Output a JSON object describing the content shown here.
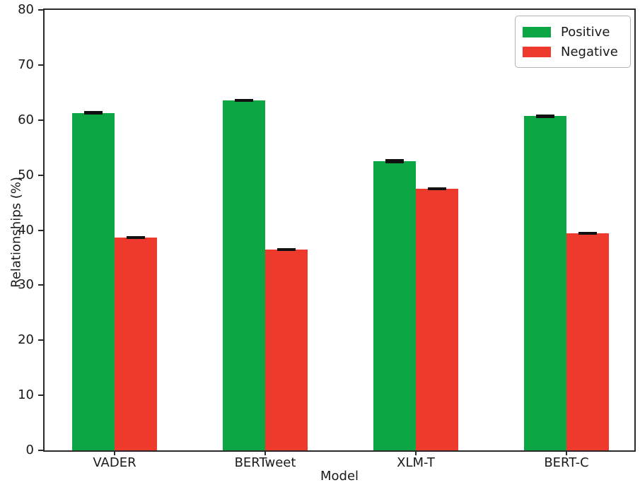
{
  "chart_data": {
    "type": "bar",
    "title": "",
    "xlabel": "Model",
    "ylabel": "Relationships (%)",
    "categories": [
      "VADER",
      "BERTweet",
      "XLM-T",
      "BERT-C"
    ],
    "series": [
      {
        "name": "Positive",
        "color": "#0ca644",
        "values": [
          61.3,
          63.6,
          52.5,
          60.7
        ],
        "errors": [
          0.3,
          0.25,
          0.35,
          0.3
        ]
      },
      {
        "name": "Negative",
        "color": "#ee3a2c",
        "values": [
          38.7,
          36.5,
          47.5,
          39.4
        ],
        "errors": [
          0.25,
          0.2,
          0.3,
          0.25
        ]
      }
    ],
    "ylim": [
      0,
      80
    ],
    "yticks": [
      0,
      10,
      20,
      30,
      40,
      50,
      60,
      70,
      80
    ],
    "grid": false,
    "legend_position": "upper right",
    "error_bar_color": "#111111",
    "spine_color": "#2a2a2a"
  }
}
